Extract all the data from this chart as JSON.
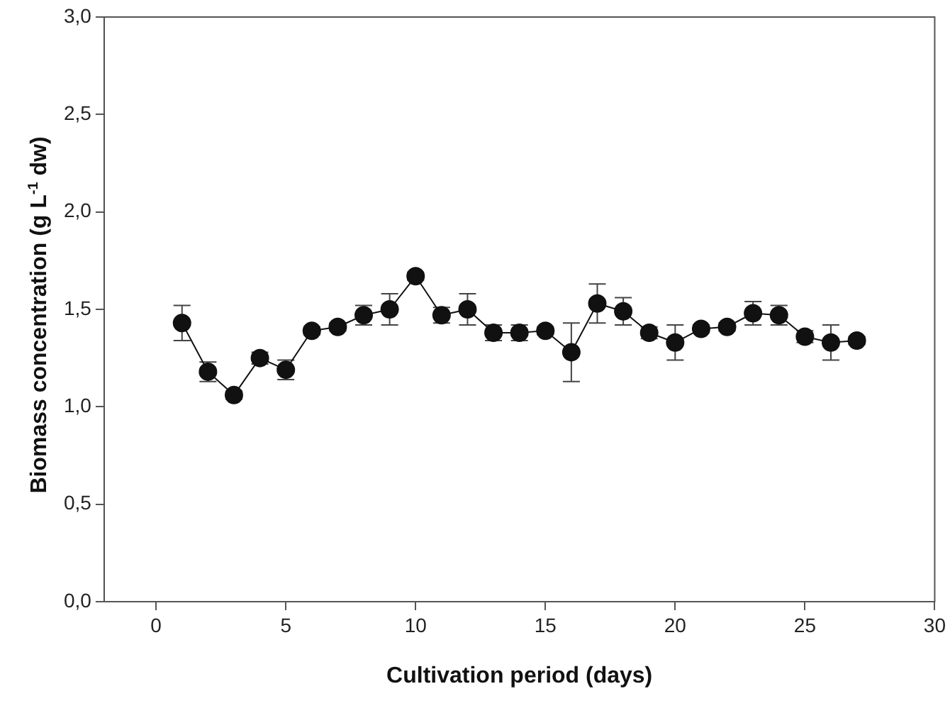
{
  "chart_data": {
    "type": "line",
    "xlabel": "Cultivation period (days)",
    "ylabel": "Biomass concentration (g L$^{-1}$ dw)",
    "x": [
      1,
      2,
      3,
      4,
      5,
      6,
      7,
      8,
      9,
      10,
      11,
      12,
      13,
      14,
      15,
      16,
      17,
      18,
      19,
      20,
      21,
      22,
      23,
      24,
      25,
      26,
      27
    ],
    "series": [
      {
        "color": "#111111",
        "values": [
          1.43,
          1.18,
          1.06,
          1.25,
          1.19,
          1.39,
          1.41,
          1.47,
          1.5,
          1.67,
          1.47,
          1.5,
          1.38,
          1.38,
          1.39,
          1.28,
          1.53,
          1.49,
          1.38,
          1.33,
          1.4,
          1.41,
          1.48,
          1.47,
          1.36,
          1.33,
          1.34
        ],
        "errors": [
          0.09,
          0.05,
          0.02,
          0.03,
          0.05,
          0.02,
          0.02,
          0.05,
          0.08,
          0.02,
          0.04,
          0.08,
          0.04,
          0.04,
          0.02,
          0.15,
          0.1,
          0.07,
          0.03,
          0.09,
          0.02,
          0.02,
          0.06,
          0.05,
          0.03,
          0.09,
          0.02
        ]
      }
    ],
    "xlim": [
      -2,
      30
    ],
    "xticks": [
      0,
      5,
      10,
      15,
      20,
      25,
      30
    ],
    "ylim": [
      0,
      3
    ],
    "yticks": [
      {
        "value": 0,
        "label": "0,0"
      },
      {
        "value": 0.5,
        "label": "0,5"
      },
      {
        "value": 1,
        "label": "1,0"
      },
      {
        "value": 1.5,
        "label": "1,5"
      },
      {
        "value": 2,
        "label": "2,0"
      },
      {
        "value": 2.5,
        "label": "2,5"
      },
      {
        "value": 3,
        "label": "3,0"
      }
    ],
    "grid": false,
    "legend": false,
    "marker": "circle",
    "line_style": "solid"
  }
}
